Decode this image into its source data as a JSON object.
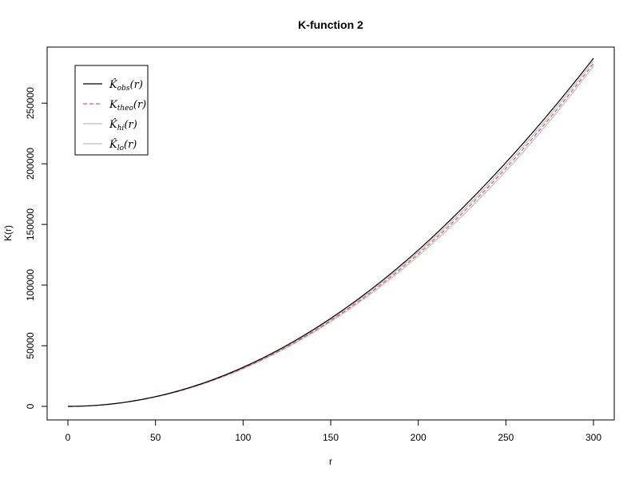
{
  "chart_data": {
    "type": "line",
    "title": "K-function 2",
    "xlabel": "r",
    "ylabel": "K(r)",
    "xlim": [
      0,
      300
    ],
    "ylim": [
      0,
      285000
    ],
    "x_ticks": [
      0,
      50,
      100,
      150,
      200,
      250,
      300
    ],
    "y_ticks": [
      0,
      50000,
      100000,
      150000,
      200000,
      250000
    ],
    "grid": false,
    "legend_position": "top-left",
    "series": [
      {
        "name": "K̂obs(r)",
        "legend_main": "K̂",
        "legend_sub": "obs",
        "legend_arg": "(r)",
        "color": "#000000",
        "style": "solid",
        "x": [
          0,
          50,
          100,
          150,
          200,
          250,
          300
        ],
        "y": [
          0,
          8000,
          32200,
          72500,
          128800,
          201000,
          287000
        ]
      },
      {
        "name": "Ktheo(r)",
        "legend_main": "K",
        "legend_sub": "theo",
        "legend_arg": "(r)",
        "color": "#DF536B",
        "style": "dashed",
        "x": [
          0,
          50,
          100,
          150,
          200,
          250,
          300
        ],
        "y": [
          0,
          7854,
          31416,
          70686,
          125664,
          196350,
          282743
        ]
      },
      {
        "name": "K̂hi(r)",
        "legend_main": "K̂",
        "legend_sub": "hi",
        "legend_arg": "(r)",
        "color": "#BEBEBE",
        "style": "solid",
        "x": [
          0,
          50,
          100,
          150,
          200,
          250,
          300
        ],
        "y": [
          0,
          7950,
          31800,
          71500,
          127200,
          198500,
          285000
        ]
      },
      {
        "name": "K̂lo(r)",
        "legend_main": "K̂",
        "legend_sub": "lo",
        "legend_arg": "(r)",
        "color": "#BEBEBE",
        "style": "solid",
        "x": [
          0,
          50,
          100,
          150,
          200,
          250,
          300
        ],
        "y": [
          0,
          7750,
          31000,
          69800,
          124000,
          194000,
          280500
        ]
      }
    ]
  }
}
